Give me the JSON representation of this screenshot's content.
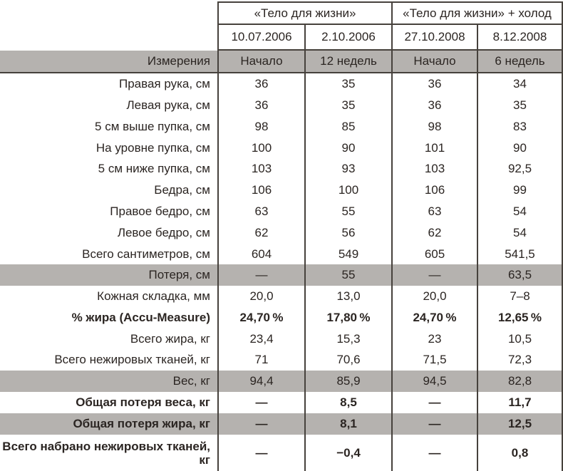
{
  "colors": {
    "band": "#b5b2af",
    "border": "#46413c",
    "text": "#2b2522"
  },
  "table": {
    "groups": [
      {
        "title": "«Тело для жизни»"
      },
      {
        "title": "«Тело для жизни» + холод"
      }
    ],
    "dates": [
      "10.07.2006",
      "2.10.2006",
      "27.10.2008",
      "8.12.2008"
    ],
    "measure_header": {
      "label": "Измерения",
      "cols": [
        "Начало",
        "12 недель",
        "Начало",
        "6 недель"
      ]
    },
    "rows": [
      {
        "label": "Правая рука, см",
        "values": [
          "36",
          "35",
          "36",
          "34"
        ]
      },
      {
        "label": "Левая рука, см",
        "values": [
          "36",
          "35",
          "36",
          "35"
        ]
      },
      {
        "label": "5 см выше пупка, см",
        "values": [
          "98",
          "85",
          "98",
          "83"
        ]
      },
      {
        "label": "На уровне пупка, см",
        "values": [
          "100",
          "90",
          "101",
          "90"
        ]
      },
      {
        "label": "5 см ниже пупка, см",
        "values": [
          "103",
          "93",
          "103",
          "92,5"
        ]
      },
      {
        "label": "Бедра, см",
        "values": [
          "106",
          "100",
          "106",
          "99"
        ]
      },
      {
        "label": "Правое бедро, см",
        "values": [
          "63",
          "55",
          "63",
          "54"
        ]
      },
      {
        "label": "Левое бедро, см",
        "values": [
          "62",
          "56",
          "62",
          "54"
        ]
      },
      {
        "label": "Всего сантиметров, см",
        "values": [
          "604",
          "549",
          "605",
          "541,5"
        ]
      },
      {
        "label": "Потеря, см",
        "values": [
          "—",
          "55",
          "—",
          "63,5"
        ]
      },
      {
        "label": "Кожная складка, мм",
        "values": [
          "20,0",
          "13,0",
          "20,0",
          "7–8"
        ]
      },
      {
        "label": "% жира (Accu-Measure)",
        "values": [
          "24,70 %",
          "17,80 %",
          "24,70 %",
          "12,65 %"
        ]
      },
      {
        "label": "Всего жира, кг",
        "values": [
          "23,4",
          "15,3",
          "23",
          "10,5"
        ]
      },
      {
        "label": "Всего нежировых тканей, кг",
        "values": [
          "71",
          "70,6",
          "71,5",
          "72,3"
        ]
      },
      {
        "label": "Вес, кг",
        "values": [
          "94,4",
          "85,9",
          "94,5",
          "82,8"
        ]
      },
      {
        "label": "Общая потеря веса, кг",
        "values": [
          "—",
          "8,5",
          "—",
          "11,7"
        ]
      },
      {
        "label": "Общая потеря жира, кг",
        "values": [
          "—",
          "8,1",
          "—",
          "12,5"
        ]
      },
      {
        "label": "Всего набрано нежировых тканей, кг",
        "values": [
          "—",
          "−0,4",
          "—",
          "0,8"
        ]
      }
    ]
  }
}
